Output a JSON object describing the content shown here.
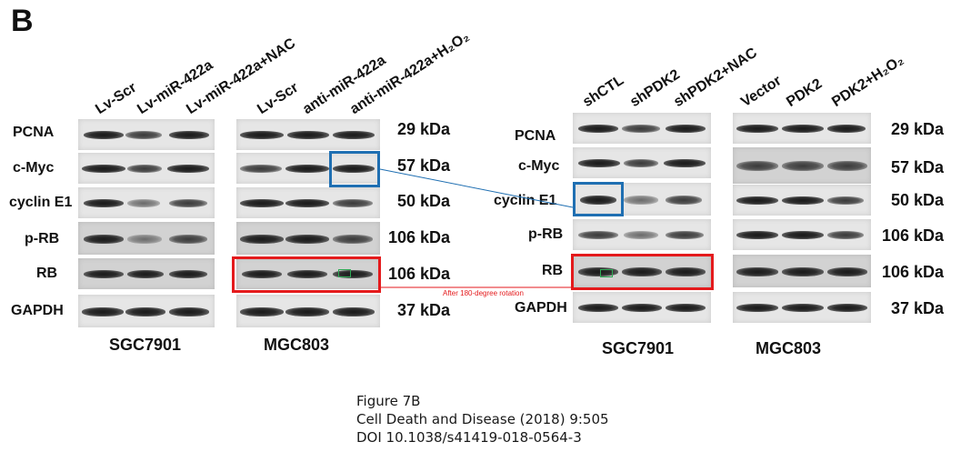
{
  "panel_letter": "B",
  "left_figure": {
    "sgc_lanes": [
      "Lv-Scr",
      "Lv-miR-422a",
      "Lv-miR-422a+NAC"
    ],
    "mgc_lanes": [
      "Lv-Scr",
      "anti-miR-422a",
      "anti-miR-422a+H₂O₂"
    ],
    "rows": [
      "PCNA",
      "c-Myc",
      "cyclin E1",
      "p-RB",
      "RB",
      "GAPDH"
    ],
    "kda": [
      "29 kDa",
      "57 kDa",
      "50 kDa",
      "106 kDa",
      "106 kDa",
      "37 kDa"
    ],
    "cell_lines": [
      "SGC7901",
      "MGC803"
    ]
  },
  "right_figure": {
    "sgc_lanes": [
      "shCTL",
      "shPDK2",
      "shPDK2+NAC"
    ],
    "mgc_lanes": [
      "Vector",
      "PDK2",
      "PDK2+H₂O₂"
    ],
    "rows": [
      "PCNA",
      "c-Myc",
      "cyclin E1",
      "p-RB",
      "RB",
      "GAPDH"
    ],
    "kda": [
      "29 kDa",
      "57 kDa",
      "50 kDa",
      "106 kDa",
      "106 kDa",
      "37 kDa"
    ],
    "cell_lines": [
      "SGC7901",
      "MGC803"
    ]
  },
  "annotation": "After 180-degree rotation",
  "annotation_colors": {
    "duplicate_blue": "#1f6fb2",
    "duplicate_red": "#e41a1c",
    "marker_green": "#2eaa55"
  },
  "caption": {
    "line1": "Figure 7B",
    "line2": "Cell Death and Disease (2018) 9:505",
    "line3": "DOI 10.1038/s41419-018-0564-3"
  }
}
